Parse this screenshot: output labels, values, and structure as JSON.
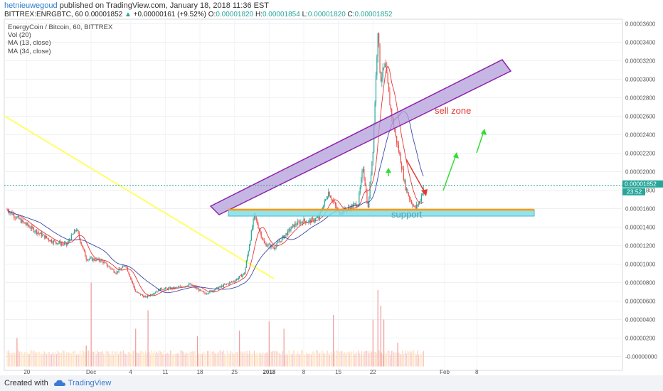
{
  "header": {
    "author": "hetnieuwegoud",
    "published_text": "published on TradingView.com, January 18, 2018 11:36 EST",
    "symbol": "BITTREX:ENRGBTC, 60",
    "last": "0.00001852",
    "change": "+0.00000161 (+9.52%)",
    "o_label": "O:",
    "o_value": "0.00001820",
    "h_label": "H:",
    "h_value": "0.00001854",
    "l_label": "L:",
    "l_value": "0.00001820",
    "c_label": "C:",
    "c_value": "0.00001852"
  },
  "legend": {
    "title": "EnergyCoin / Bitcoin, 60, BITTREX",
    "vol": "Vol (20)",
    "ma13": "MA (13, close)",
    "ma34": "MA (34, close)"
  },
  "price_tags": {
    "last_price": "0.00001852",
    "countdown": "23:52"
  },
  "annotations": {
    "sell_zone": "sell zone",
    "support": "support"
  },
  "footer": {
    "created_with": "Created with",
    "brand": "TradingView"
  },
  "colors": {
    "up": "#26a69a",
    "down": "#ef5350",
    "ma13": "#e53935",
    "ma34": "#3949ab",
    "trendline": "#ffff66",
    "sell_zone_fill": "#b39ddb",
    "support_fill": "#80deea",
    "support_top": "#ff9800",
    "arrow_red": "#e53935",
    "arrow_green": "#33dd33"
  },
  "chart_data": {
    "type": "candlestick",
    "ylim": [
      -1.5e-06,
      3.65e-05
    ],
    "y_ticks": [
      "0.00003600",
      "0.00003400",
      "0.00003200",
      "0.00003000",
      "0.00002800",
      "0.00002600",
      "0.00002400",
      "0.00002200",
      "0.00002000",
      "0.00001800",
      "0.00001600",
      "0.00001400",
      "0.00001200",
      "0.00001000",
      "0.00000800",
      "0.00000600",
      "0.00000400",
      "0.00000200",
      "-0.00000000"
    ],
    "y_tick_values": [
      3.6e-05,
      3.4e-05,
      3.2e-05,
      3e-05,
      2.8e-05,
      2.6e-05,
      2.4e-05,
      2.2e-05,
      2e-05,
      1.8e-05,
      1.6e-05,
      1.4e-05,
      1.2e-05,
      1e-05,
      8e-06,
      6e-06,
      4e-06,
      2e-06,
      0
    ],
    "x_ticks": [
      "20",
      "Dec",
      "4",
      "11",
      "18",
      "25",
      "2018",
      "8",
      "15",
      "22",
      "Feb",
      "8"
    ],
    "price_path": [
      {
        "d": 0,
        "v": 1.59e-05
      },
      {
        "d": 3,
        "v": 1.46e-05
      },
      {
        "d": 6,
        "v": 1.35e-05
      },
      {
        "d": 9,
        "v": 1.25e-05
      },
      {
        "d": 12,
        "v": 1.21e-05
      },
      {
        "d": 14,
        "v": 1.38e-05
      },
      {
        "d": 16,
        "v": 1.06e-05
      },
      {
        "d": 19,
        "v": 1.04e-05
      },
      {
        "d": 22,
        "v": 9.1e-06
      },
      {
        "d": 24,
        "v": 9.9e-06
      },
      {
        "d": 26,
        "v": 7e-06
      },
      {
        "d": 28,
        "v": 6.4e-06
      },
      {
        "d": 31,
        "v": 7.3e-06
      },
      {
        "d": 34,
        "v": 7.4e-06
      },
      {
        "d": 37,
        "v": 7.8e-06
      },
      {
        "d": 40,
        "v": 6.8e-06
      },
      {
        "d": 43,
        "v": 7.5e-06
      },
      {
        "d": 46,
        "v": 8.2e-06
      },
      {
        "d": 48,
        "v": 9e-06
      },
      {
        "d": 50,
        "v": 1.53e-05
      },
      {
        "d": 52,
        "v": 1.22e-05
      },
      {
        "d": 54,
        "v": 1.18e-05
      },
      {
        "d": 56,
        "v": 1.3e-05
      },
      {
        "d": 58,
        "v": 1.42e-05
      },
      {
        "d": 60,
        "v": 1.47e-05
      },
      {
        "d": 61,
        "v": 1.46e-05
      },
      {
        "d": 63,
        "v": 1.5e-05
      },
      {
        "d": 65,
        "v": 1.78e-05
      },
      {
        "d": 67,
        "v": 1.56e-05
      },
      {
        "d": 69,
        "v": 1.6e-05
      },
      {
        "d": 71,
        "v": 1.66e-05
      },
      {
        "d": 72,
        "v": 2.05e-05
      },
      {
        "d": 73,
        "v": 1.6e-05
      },
      {
        "d": 74,
        "v": 2.25e-05
      },
      {
        "d": 75,
        "v": 3.55e-05
      },
      {
        "d": 75.5,
        "v": 3e-05
      },
      {
        "d": 76.5,
        "v": 3.15e-05
      },
      {
        "d": 77.5,
        "v": 2.7e-05
      },
      {
        "d": 78.5,
        "v": 2.4e-05
      },
      {
        "d": 79.5,
        "v": 2.15e-05
      },
      {
        "d": 80.5,
        "v": 1.85e-05
      },
      {
        "d": 81.5,
        "v": 1.7e-05
      },
      {
        "d": 82.5,
        "v": 1.6e-05
      },
      {
        "d": 83.5,
        "v": 1.68e-05
      },
      {
        "d": 84.3,
        "v": 1.85e-05
      }
    ],
    "volume_spikes": [
      {
        "d": 2,
        "v": 2e-06
      },
      {
        "d": 16,
        "v": 1.2e-06
      },
      {
        "d": 17,
        "v": 8e-06
      },
      {
        "d": 26,
        "v": 3e-06
      },
      {
        "d": 28.5,
        "v": 5e-06
      },
      {
        "d": 38.5,
        "v": 2.2e-06
      },
      {
        "d": 47,
        "v": 2.8e-06
      },
      {
        "d": 53,
        "v": 3.8e-06
      },
      {
        "d": 56,
        "v": 3e-06
      },
      {
        "d": 66,
        "v": 4.5e-06
      },
      {
        "d": 74,
        "v": 4e-06
      },
      {
        "d": 75,
        "v": 7.2e-06
      },
      {
        "d": 75.6,
        "v": 5.5e-06
      },
      {
        "d": 76.2,
        "v": 4e-06
      },
      {
        "d": 79,
        "v": 1.5e-06
      }
    ],
    "last_value": 1.852e-05
  }
}
